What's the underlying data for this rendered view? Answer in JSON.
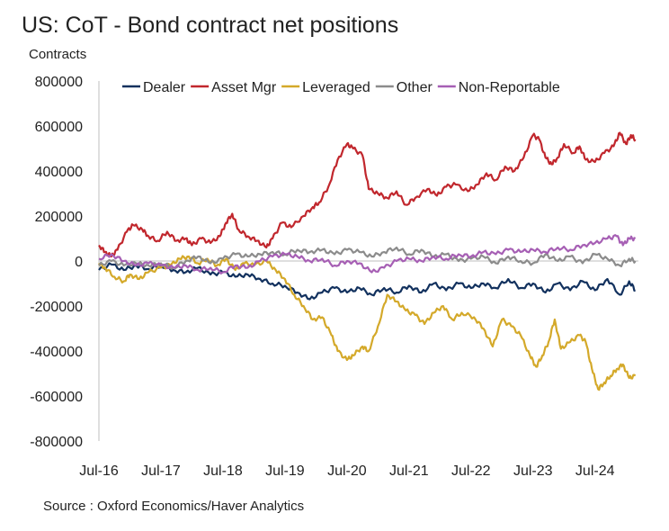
{
  "chart_data": {
    "type": "line",
    "title": "US: CoT - Bond contract net positions",
    "ylabel": "Contracts",
    "xlabel": "",
    "ylim": [
      -800000,
      800000
    ],
    "yticks": [
      800000,
      600000,
      400000,
      200000,
      0,
      -200000,
      -400000,
      -600000,
      -800000
    ],
    "xlim": [
      2016.5,
      2025.2
    ],
    "xticks": [
      {
        "label": "Jul-16",
        "x": 2016.5
      },
      {
        "label": "Jul-17",
        "x": 2017.5
      },
      {
        "label": "Jul-18",
        "x": 2018.5
      },
      {
        "label": "Jul-19",
        "x": 2019.5
      },
      {
        "label": "Jul-20",
        "x": 2020.5
      },
      {
        "label": "Jul-21",
        "x": 2021.5
      },
      {
        "label": "Jul-22",
        "x": 2022.5
      },
      {
        "label": "Jul-23",
        "x": 2023.5
      },
      {
        "label": "Jul-24",
        "x": 2024.5
      }
    ],
    "legend_position": "top",
    "source": "Source : Oxford Economics/Haver Analytics",
    "series": [
      {
        "name": "Dealer",
        "color": "#12315e",
        "points": [
          [
            2016.5,
            -40000
          ],
          [
            2016.7,
            -15000
          ],
          [
            2016.9,
            -40000
          ],
          [
            2017.1,
            -20000
          ],
          [
            2017.3,
            -35000
          ],
          [
            2017.5,
            -20000
          ],
          [
            2017.7,
            -40000
          ],
          [
            2017.9,
            -50000
          ],
          [
            2018.1,
            -30000
          ],
          [
            2018.3,
            -60000
          ],
          [
            2018.5,
            -50000
          ],
          [
            2018.7,
            -70000
          ],
          [
            2018.9,
            -60000
          ],
          [
            2019.1,
            -80000
          ],
          [
            2019.3,
            -100000
          ],
          [
            2019.5,
            -110000
          ],
          [
            2019.7,
            -140000
          ],
          [
            2019.9,
            -170000
          ],
          [
            2020.1,
            -140000
          ],
          [
            2020.3,
            -120000
          ],
          [
            2020.5,
            -140000
          ],
          [
            2020.7,
            -120000
          ],
          [
            2020.9,
            -150000
          ],
          [
            2021.1,
            -120000
          ],
          [
            2021.3,
            -140000
          ],
          [
            2021.5,
            -110000
          ],
          [
            2021.7,
            -140000
          ],
          [
            2021.9,
            -100000
          ],
          [
            2022.1,
            -130000
          ],
          [
            2022.3,
            -100000
          ],
          [
            2022.5,
            -120000
          ],
          [
            2022.7,
            -100000
          ],
          [
            2022.9,
            -120000
          ],
          [
            2023.1,
            -80000
          ],
          [
            2023.3,
            -120000
          ],
          [
            2023.5,
            -100000
          ],
          [
            2023.7,
            -140000
          ],
          [
            2023.9,
            -100000
          ],
          [
            2024.1,
            -130000
          ],
          [
            2024.3,
            -90000
          ],
          [
            2024.5,
            -130000
          ],
          [
            2024.7,
            -80000
          ],
          [
            2024.9,
            -150000
          ],
          [
            2025.05,
            -90000
          ],
          [
            2025.15,
            -130000
          ]
        ]
      },
      {
        "name": "Asset Mgr",
        "color": "#c1272d",
        "points": [
          [
            2016.5,
            70000
          ],
          [
            2016.6,
            40000
          ],
          [
            2016.7,
            20000
          ],
          [
            2016.8,
            50000
          ],
          [
            2016.95,
            130000
          ],
          [
            2017.05,
            160000
          ],
          [
            2017.2,
            140000
          ],
          [
            2017.3,
            110000
          ],
          [
            2017.45,
            90000
          ],
          [
            2017.6,
            130000
          ],
          [
            2017.75,
            90000
          ],
          [
            2017.9,
            100000
          ],
          [
            2018.0,
            70000
          ],
          [
            2018.15,
            100000
          ],
          [
            2018.3,
            80000
          ],
          [
            2018.45,
            110000
          ],
          [
            2018.55,
            170000
          ],
          [
            2018.65,
            210000
          ],
          [
            2018.75,
            140000
          ],
          [
            2018.9,
            110000
          ],
          [
            2019.05,
            90000
          ],
          [
            2019.2,
            60000
          ],
          [
            2019.3,
            100000
          ],
          [
            2019.45,
            170000
          ],
          [
            2019.6,
            150000
          ],
          [
            2019.8,
            200000
          ],
          [
            2019.95,
            240000
          ],
          [
            2020.05,
            260000
          ],
          [
            2020.2,
            330000
          ],
          [
            2020.35,
            450000
          ],
          [
            2020.5,
            520000
          ],
          [
            2020.6,
            500000
          ],
          [
            2020.75,
            470000
          ],
          [
            2020.85,
            320000
          ],
          [
            2021.0,
            300000
          ],
          [
            2021.15,
            280000
          ],
          [
            2021.3,
            310000
          ],
          [
            2021.45,
            250000
          ],
          [
            2021.6,
            280000
          ],
          [
            2021.8,
            320000
          ],
          [
            2021.95,
            290000
          ],
          [
            2022.1,
            330000
          ],
          [
            2022.25,
            340000
          ],
          [
            2022.45,
            310000
          ],
          [
            2022.6,
            340000
          ],
          [
            2022.75,
            390000
          ],
          [
            2022.9,
            360000
          ],
          [
            2023.05,
            420000
          ],
          [
            2023.2,
            400000
          ],
          [
            2023.35,
            460000
          ],
          [
            2023.5,
            560000
          ],
          [
            2023.6,
            540000
          ],
          [
            2023.7,
            460000
          ],
          [
            2023.8,
            430000
          ],
          [
            2023.9,
            460000
          ],
          [
            2024.0,
            520000
          ],
          [
            2024.15,
            480000
          ],
          [
            2024.25,
            510000
          ],
          [
            2024.35,
            450000
          ],
          [
            2024.5,
            440000
          ],
          [
            2024.65,
            480000
          ],
          [
            2024.8,
            510000
          ],
          [
            2024.9,
            570000
          ],
          [
            2025.0,
            520000
          ],
          [
            2025.08,
            560000
          ],
          [
            2025.15,
            540000
          ]
        ]
      },
      {
        "name": "Leveraged",
        "color": "#d4a92a",
        "points": [
          [
            2016.5,
            -10000
          ],
          [
            2016.6,
            -30000
          ],
          [
            2016.75,
            -70000
          ],
          [
            2016.9,
            -90000
          ],
          [
            2017.0,
            -60000
          ],
          [
            2017.15,
            -80000
          ],
          [
            2017.3,
            -50000
          ],
          [
            2017.5,
            -30000
          ],
          [
            2017.65,
            -20000
          ],
          [
            2017.8,
            10000
          ],
          [
            2017.95,
            20000
          ],
          [
            2018.1,
            -10000
          ],
          [
            2018.25,
            10000
          ],
          [
            2018.4,
            -20000
          ],
          [
            2018.55,
            10000
          ],
          [
            2018.7,
            -40000
          ],
          [
            2018.85,
            -10000
          ],
          [
            2019.0,
            -20000
          ],
          [
            2019.2,
            0
          ],
          [
            2019.35,
            -40000
          ],
          [
            2019.5,
            -80000
          ],
          [
            2019.65,
            -150000
          ],
          [
            2019.8,
            -200000
          ],
          [
            2019.95,
            -260000
          ],
          [
            2020.1,
            -250000
          ],
          [
            2020.25,
            -330000
          ],
          [
            2020.35,
            -400000
          ],
          [
            2020.5,
            -440000
          ],
          [
            2020.6,
            -420000
          ],
          [
            2020.75,
            -380000
          ],
          [
            2020.85,
            -400000
          ],
          [
            2021.0,
            -290000
          ],
          [
            2021.15,
            -150000
          ],
          [
            2021.3,
            -180000
          ],
          [
            2021.45,
            -220000
          ],
          [
            2021.6,
            -240000
          ],
          [
            2021.75,
            -280000
          ],
          [
            2021.9,
            -230000
          ],
          [
            2022.05,
            -200000
          ],
          [
            2022.2,
            -260000
          ],
          [
            2022.35,
            -230000
          ],
          [
            2022.55,
            -250000
          ],
          [
            2022.7,
            -300000
          ],
          [
            2022.85,
            -380000
          ],
          [
            2023.0,
            -260000
          ],
          [
            2023.15,
            -290000
          ],
          [
            2023.3,
            -330000
          ],
          [
            2023.45,
            -420000
          ],
          [
            2023.55,
            -470000
          ],
          [
            2023.65,
            -420000
          ],
          [
            2023.75,
            -360000
          ],
          [
            2023.85,
            -260000
          ],
          [
            2023.95,
            -390000
          ],
          [
            2024.1,
            -360000
          ],
          [
            2024.25,
            -330000
          ],
          [
            2024.35,
            -360000
          ],
          [
            2024.45,
            -480000
          ],
          [
            2024.55,
            -570000
          ],
          [
            2024.65,
            -540000
          ],
          [
            2024.75,
            -510000
          ],
          [
            2024.85,
            -480000
          ],
          [
            2024.95,
            -460000
          ],
          [
            2025.05,
            -520000
          ],
          [
            2025.15,
            -510000
          ]
        ]
      },
      {
        "name": "Other",
        "color": "#8c8c8c",
        "points": [
          [
            2016.5,
            -20000
          ],
          [
            2016.7,
            0
          ],
          [
            2016.9,
            -20000
          ],
          [
            2017.1,
            -10000
          ],
          [
            2017.3,
            -20000
          ],
          [
            2017.5,
            -10000
          ],
          [
            2017.7,
            -30000
          ],
          [
            2017.9,
            0
          ],
          [
            2018.1,
            20000
          ],
          [
            2018.3,
            -10000
          ],
          [
            2018.5,
            10000
          ],
          [
            2018.7,
            30000
          ],
          [
            2018.9,
            20000
          ],
          [
            2019.1,
            30000
          ],
          [
            2019.3,
            40000
          ],
          [
            2019.5,
            30000
          ],
          [
            2019.7,
            50000
          ],
          [
            2019.9,
            40000
          ],
          [
            2020.1,
            50000
          ],
          [
            2020.3,
            30000
          ],
          [
            2020.5,
            50000
          ],
          [
            2020.7,
            40000
          ],
          [
            2020.9,
            20000
          ],
          [
            2021.1,
            40000
          ],
          [
            2021.3,
            60000
          ],
          [
            2021.5,
            30000
          ],
          [
            2021.7,
            50000
          ],
          [
            2021.9,
            20000
          ],
          [
            2022.1,
            30000
          ],
          [
            2022.3,
            0
          ],
          [
            2022.5,
            10000
          ],
          [
            2022.7,
            20000
          ],
          [
            2022.9,
            -10000
          ],
          [
            2023.1,
            20000
          ],
          [
            2023.3,
            0
          ],
          [
            2023.5,
            -10000
          ],
          [
            2023.7,
            30000
          ],
          [
            2023.9,
            0
          ],
          [
            2024.1,
            20000
          ],
          [
            2024.3,
            -10000
          ],
          [
            2024.5,
            30000
          ],
          [
            2024.7,
            10000
          ],
          [
            2024.9,
            -20000
          ],
          [
            2025.05,
            10000
          ],
          [
            2025.15,
            0
          ]
        ]
      },
      {
        "name": "Non-Reportable",
        "color": "#a65fb4",
        "points": [
          [
            2016.5,
            10000
          ],
          [
            2016.7,
            30000
          ],
          [
            2016.9,
            0
          ],
          [
            2017.1,
            -20000
          ],
          [
            2017.3,
            -10000
          ],
          [
            2017.5,
            -20000
          ],
          [
            2017.7,
            -30000
          ],
          [
            2017.9,
            -20000
          ],
          [
            2018.1,
            -40000
          ],
          [
            2018.3,
            -30000
          ],
          [
            2018.5,
            -50000
          ],
          [
            2018.7,
            -20000
          ],
          [
            2018.9,
            -30000
          ],
          [
            2019.1,
            0
          ],
          [
            2019.3,
            20000
          ],
          [
            2019.5,
            30000
          ],
          [
            2019.7,
            20000
          ],
          [
            2019.9,
            0
          ],
          [
            2020.1,
            10000
          ],
          [
            2020.3,
            -20000
          ],
          [
            2020.5,
            0
          ],
          [
            2020.7,
            -10000
          ],
          [
            2020.9,
            -50000
          ],
          [
            2021.1,
            -30000
          ],
          [
            2021.3,
            0
          ],
          [
            2021.5,
            10000
          ],
          [
            2021.7,
            0
          ],
          [
            2021.9,
            20000
          ],
          [
            2022.1,
            10000
          ],
          [
            2022.3,
            30000
          ],
          [
            2022.5,
            20000
          ],
          [
            2022.7,
            40000
          ],
          [
            2022.9,
            30000
          ],
          [
            2023.1,
            50000
          ],
          [
            2023.3,
            40000
          ],
          [
            2023.5,
            50000
          ],
          [
            2023.7,
            40000
          ],
          [
            2023.9,
            60000
          ],
          [
            2024.1,
            50000
          ],
          [
            2024.3,
            70000
          ],
          [
            2024.5,
            80000
          ],
          [
            2024.7,
            100000
          ],
          [
            2024.85,
            110000
          ],
          [
            2024.95,
            70000
          ],
          [
            2025.05,
            100000
          ],
          [
            2025.15,
            100000
          ]
        ]
      }
    ]
  }
}
